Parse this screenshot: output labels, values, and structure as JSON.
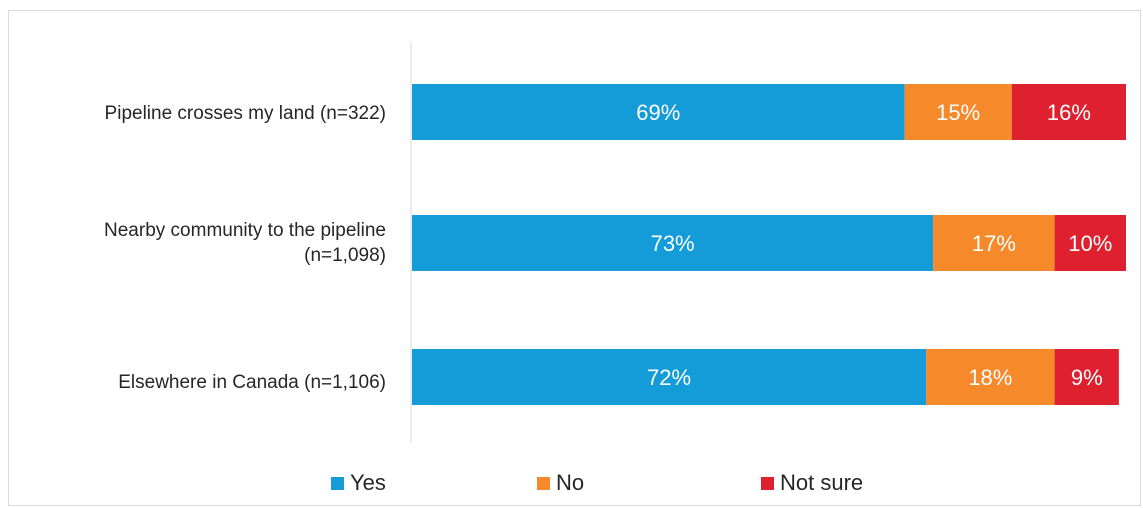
{
  "chart_data": {
    "type": "bar",
    "orientation": "horizontal",
    "stacked": true,
    "categories": [
      "Pipeline crosses my land (n=322)",
      "Nearby community to the pipeline (n=1,098)",
      "Elsewhere in Canada (n=1,106)"
    ],
    "series": [
      {
        "name": "Yes",
        "values": [
          69,
          73,
          72
        ],
        "labels": [
          "69%",
          "73%",
          "72%"
        ],
        "color": "#139cd8"
      },
      {
        "name": "No",
        "values": [
          15,
          17,
          18
        ],
        "labels": [
          "15%",
          "17%",
          "18%"
        ],
        "color": "#f6892a"
      },
      {
        "name": "Not sure",
        "values": [
          16,
          10,
          9
        ],
        "labels": [
          "16%",
          "10%",
          "9%"
        ],
        "color": "#de202f"
      }
    ],
    "xlim": [
      0,
      100
    ],
    "legend": "bottom",
    "grid": false
  }
}
